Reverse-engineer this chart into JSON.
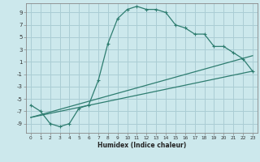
{
  "xlabel": "Humidex (Indice chaleur)",
  "bg_color": "#cce8ec",
  "grid_color": "#aacdd4",
  "line_color": "#2e7d70",
  "xlim": [
    -0.5,
    23.5
  ],
  "ylim": [
    -10.5,
    10.5
  ],
  "xticks": [
    0,
    1,
    2,
    3,
    4,
    5,
    6,
    7,
    8,
    9,
    10,
    11,
    12,
    13,
    14,
    15,
    16,
    17,
    18,
    19,
    20,
    21,
    22,
    23
  ],
  "yticks": [
    -9,
    -7,
    -5,
    -3,
    -1,
    1,
    3,
    5,
    7,
    9
  ],
  "line1_x": [
    0,
    1,
    2,
    3,
    4,
    5,
    6,
    7,
    8,
    9,
    10,
    11,
    12,
    13,
    14,
    15,
    16,
    17,
    18,
    19,
    20,
    21,
    22,
    23
  ],
  "line1_y": [
    -6,
    -7,
    -9,
    -9.5,
    -9,
    -6.5,
    -6,
    -2,
    4,
    8,
    9.5,
    10,
    9.5,
    9.5,
    9,
    7,
    6.5,
    5.5,
    5.5,
    3.5,
    3.5,
    2.5,
    1.5,
    -0.5
  ],
  "line2_x": [
    0,
    23
  ],
  "line2_y": [
    -8,
    -0.5
  ],
  "line3_x": [
    0,
    23
  ],
  "line3_y": [
    -8,
    2
  ]
}
